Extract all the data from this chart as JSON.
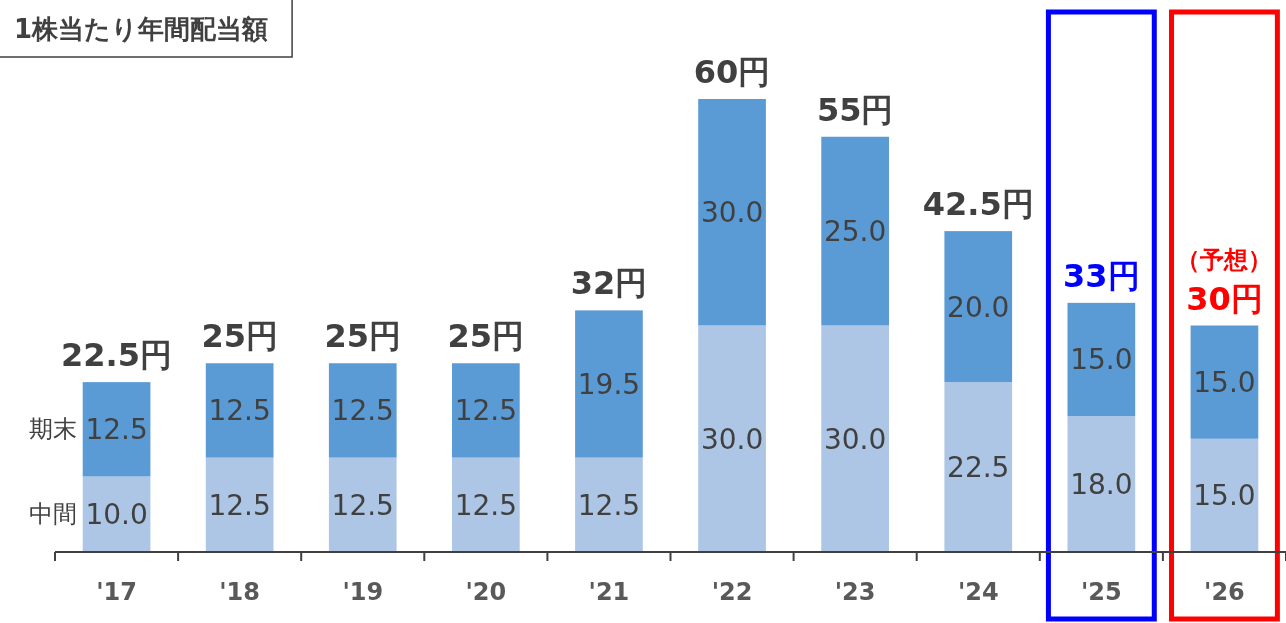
{
  "chart_data": {
    "type": "bar",
    "stacked": true,
    "title": "1株当たり年間配当額",
    "categories": [
      "'17",
      "'18",
      "'19",
      "'20",
      "'21",
      "'22",
      "'23",
      "'24",
      "'25",
      "'26"
    ],
    "series": [
      {
        "name": "中間",
        "color": "#adc6e5",
        "values": [
          10,
          12.5,
          12.5,
          12.5,
          12.5,
          30,
          30,
          22.5,
          18,
          15
        ],
        "value_labels": [
          "10.0",
          "12.5",
          "12.5",
          "12.5",
          "12.5",
          "30.0",
          "30.0",
          "22.5",
          "18.0",
          "15.0"
        ]
      },
      {
        "name": "期末",
        "color": "#5b9bd5",
        "values": [
          12.5,
          12.5,
          12.5,
          12.5,
          19.5,
          30,
          25,
          20,
          15,
          15
        ],
        "value_labels": [
          "12.5",
          "12.5",
          "12.5",
          "12.5",
          "19.5",
          "30.0",
          "25.0",
          "20.0",
          "15.0",
          "15.0"
        ]
      }
    ],
    "totals": [
      "22.5円",
      "25円",
      "25円",
      "25円",
      "32円",
      "60円",
      "55円",
      "42.5円",
      "33円",
      "30円"
    ],
    "annotations": [
      "（予想）"
    ]
  }
}
